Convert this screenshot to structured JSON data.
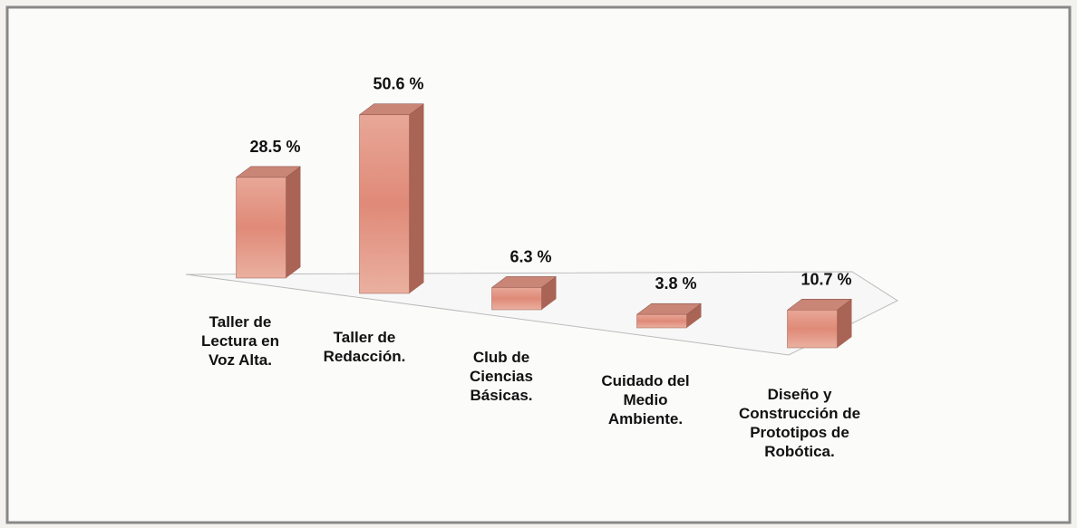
{
  "chart_data": {
    "type": "bar3d",
    "categories": [
      "Taller de Lectura en Voz Alta.",
      "Taller de Redacción.",
      "Club de Ciencias Básicas.",
      "Cuidado del Medio Ambiente.",
      "Diseño y Construcción de Prototipos de Robótica."
    ],
    "values": [
      28.5,
      50.6,
      6.3,
      3.8,
      10.7
    ],
    "value_labels": [
      "28.5 %",
      "50.6 %",
      "6.3 %",
      "3.8 %",
      "10.7 %"
    ],
    "color": "#e39a8a"
  }
}
